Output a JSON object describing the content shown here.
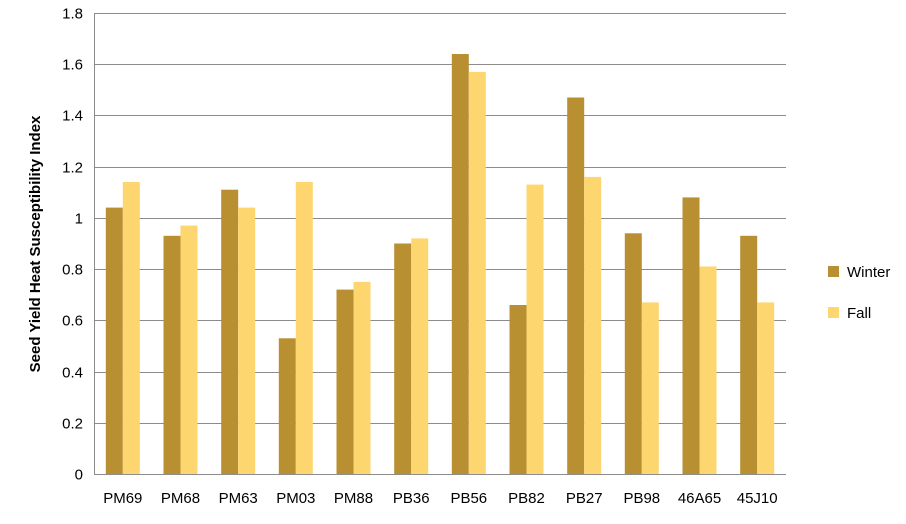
{
  "chart_data": {
    "type": "bar",
    "title": "",
    "xlabel": "",
    "ylabel": "Seed Yield Heat Susceptibility Index",
    "ylim": [
      0,
      1.8
    ],
    "yticks": [
      0,
      0.2,
      0.4,
      0.6,
      0.8,
      1,
      1.2,
      1.4,
      1.6,
      1.8
    ],
    "ytick_labels": [
      "0",
      "0.2",
      "0.4",
      "0.6",
      "0.8",
      "1",
      "1.2",
      "1.4",
      "1.6",
      "1.8"
    ],
    "grid": true,
    "legend_position": "right",
    "categories": [
      "PM69",
      "PM68",
      "PM63",
      "PM03",
      "PM88",
      "PB36",
      "PB56",
      "PB82",
      "PB27",
      "PB98",
      "46A65",
      "45J10"
    ],
    "series": [
      {
        "name": "Winter",
        "color": "#B88F31",
        "values": [
          1.04,
          0.93,
          1.11,
          0.53,
          0.72,
          0.9,
          1.64,
          0.66,
          1.47,
          0.94,
          1.08,
          0.93
        ]
      },
      {
        "name": "Fall",
        "color": "#FED66F",
        "values": [
          1.14,
          0.97,
          1.04,
          1.14,
          0.75,
          0.92,
          1.57,
          1.13,
          1.16,
          0.67,
          0.81,
          0.67
        ]
      }
    ]
  }
}
